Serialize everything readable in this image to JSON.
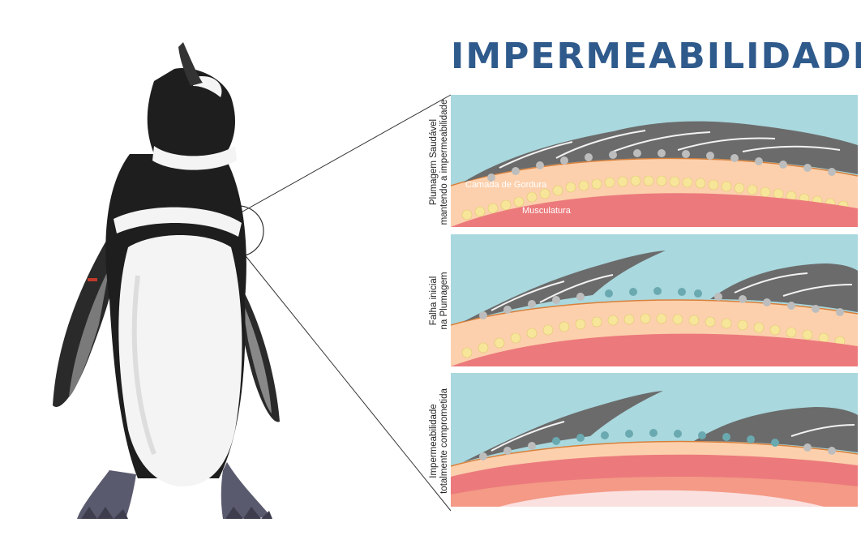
{
  "title": "IMPERMEABILIDADE",
  "panels": [
    {
      "label_line1": "Plumagem Saudável",
      "label_line2": "mantendo a impermeabilidade",
      "fat_label": "Camada de Gordura",
      "muscle_label": "Musculatura"
    },
    {
      "label_line1": "Falha inicial",
      "label_line2": "na Plumagem"
    },
    {
      "label_line1": "Impermeabilidade",
      "label_line2": "totalmente comprometida"
    }
  ],
  "colors": {
    "title": "#2f5a8c",
    "water": "#a9d8de",
    "feather_dark": "#6b6b6b",
    "feather_white": "#f2f2f2",
    "down": "#bdbdbd",
    "fat": "#fcd0ad",
    "fat_globule": "#f7e69a",
    "muscle": "#ec7a7c",
    "wet_down": "#6aa9b0"
  }
}
